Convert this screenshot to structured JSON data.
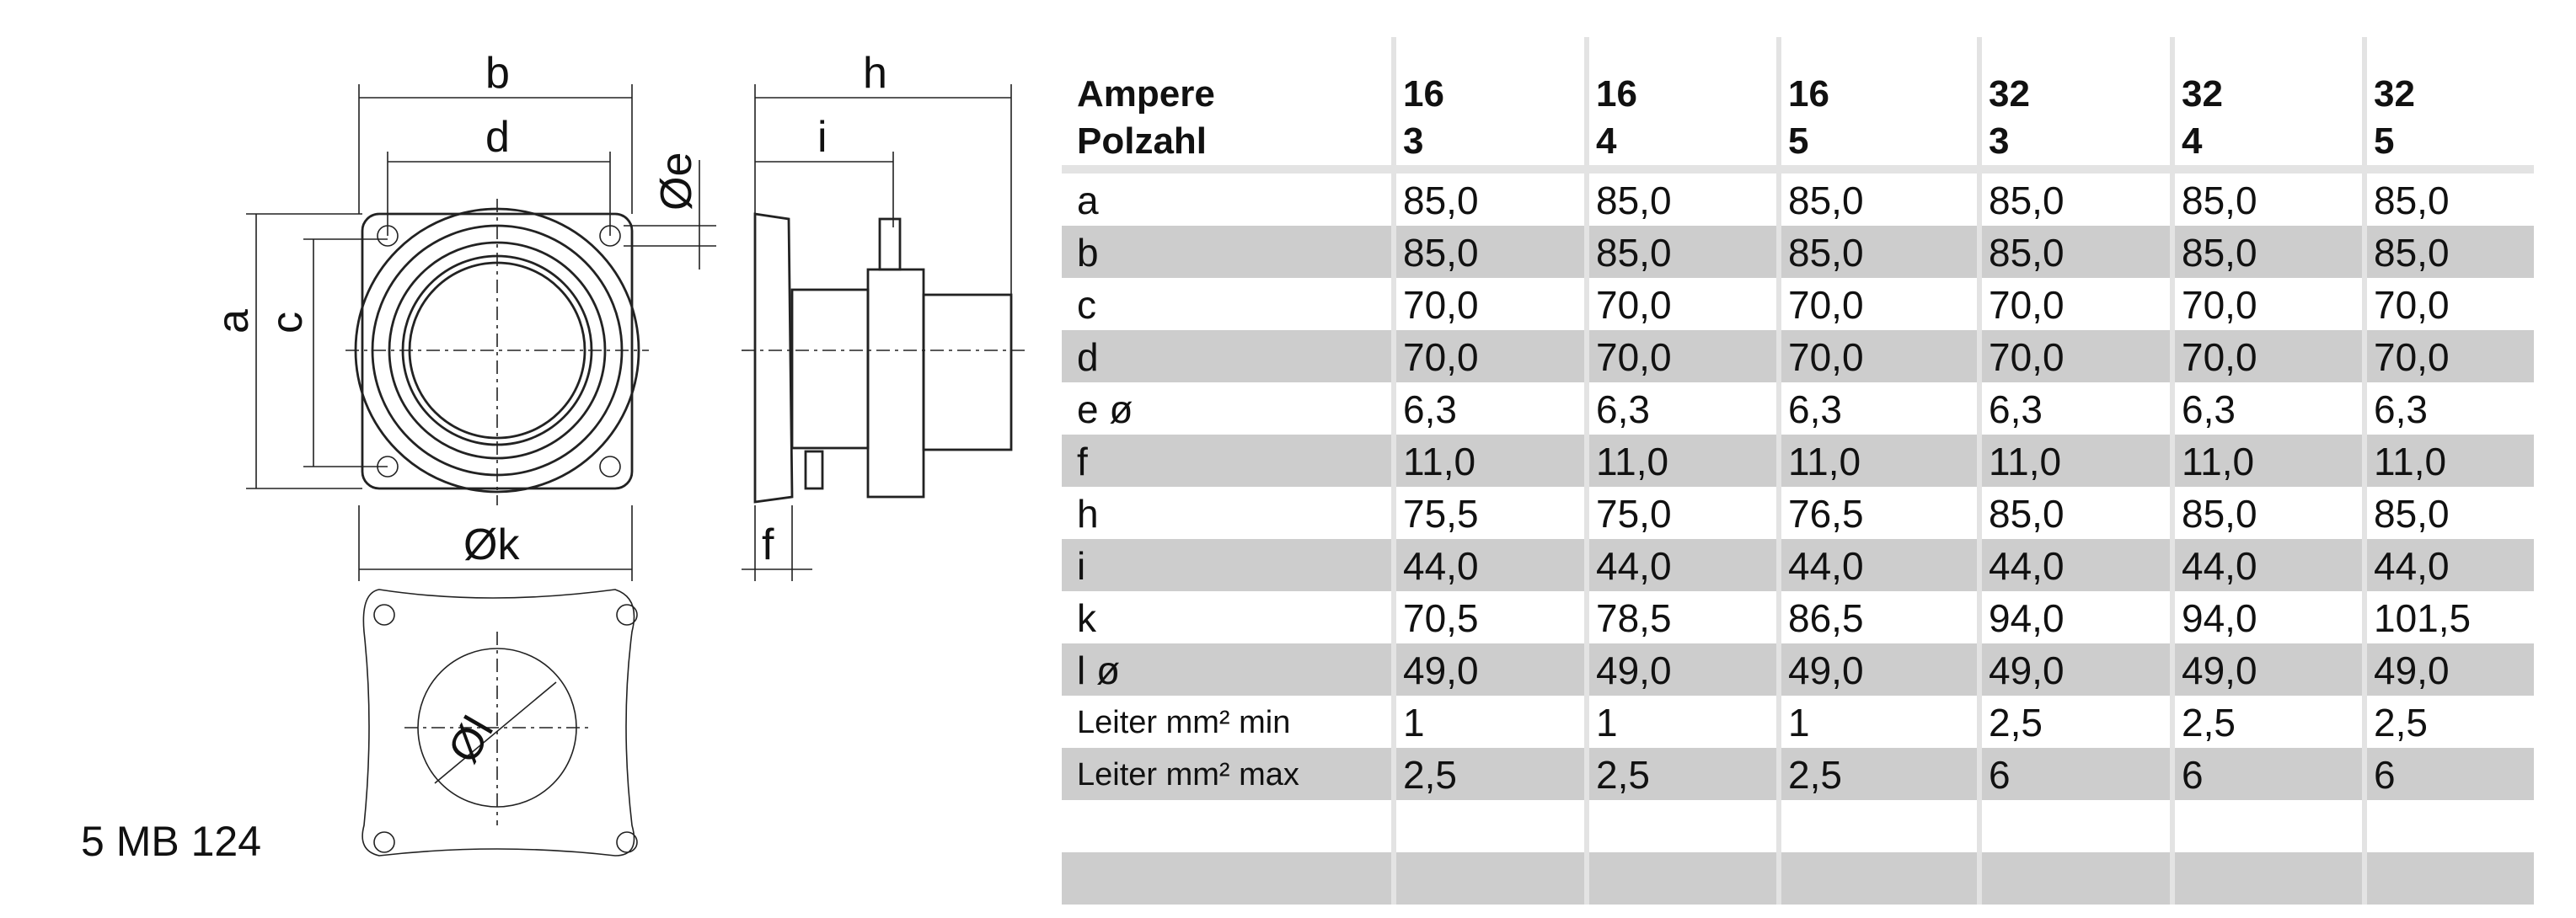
{
  "drawing": {
    "labels": {
      "b": "b",
      "d": "d",
      "a": "a",
      "c": "c",
      "e": "Øe",
      "k": "Øk",
      "h": "h",
      "i": "i",
      "f": "f",
      "l": "Øl"
    },
    "model": "5 MB 124"
  },
  "table": {
    "header": {
      "row_labels": [
        "Ampere",
        "Polzahl"
      ],
      "columns": [
        {
          "ampere": "16",
          "polzahl": "3"
        },
        {
          "ampere": "16",
          "polzahl": "4"
        },
        {
          "ampere": "16",
          "polzahl": "5"
        },
        {
          "ampere": "32",
          "polzahl": "3"
        },
        {
          "ampere": "32",
          "polzahl": "4"
        },
        {
          "ampere": "32",
          "polzahl": "5"
        }
      ]
    },
    "rows": [
      {
        "label": "a",
        "values": [
          "85,0",
          "85,0",
          "85,0",
          "85,0",
          "85,0",
          "85,0"
        ]
      },
      {
        "label": "b",
        "values": [
          "85,0",
          "85,0",
          "85,0",
          "85,0",
          "85,0",
          "85,0"
        ]
      },
      {
        "label": "c",
        "values": [
          "70,0",
          "70,0",
          "70,0",
          "70,0",
          "70,0",
          "70,0"
        ]
      },
      {
        "label": "d",
        "values": [
          "70,0",
          "70,0",
          "70,0",
          "70,0",
          "70,0",
          "70,0"
        ]
      },
      {
        "label": "e ø",
        "values": [
          "6,3",
          "6,3",
          "6,3",
          "6,3",
          "6,3",
          "6,3"
        ]
      },
      {
        "label": "f",
        "values": [
          "11,0",
          "11,0",
          "11,0",
          "11,0",
          "11,0",
          "11,0"
        ]
      },
      {
        "label": "h",
        "values": [
          "75,5",
          "75,0",
          "76,5",
          "85,0",
          "85,0",
          "85,0"
        ]
      },
      {
        "label": "i",
        "values": [
          "44,0",
          "44,0",
          "44,0",
          "44,0",
          "44,0",
          "44,0"
        ]
      },
      {
        "label": "k",
        "values": [
          "70,5",
          "78,5",
          "86,5",
          "94,0",
          "94,0",
          "101,5"
        ]
      },
      {
        "label": "l ø",
        "values": [
          "49,0",
          "49,0",
          "49,0",
          "49,0",
          "49,0",
          "49,0"
        ]
      },
      {
        "label": "Leiter mm² min",
        "values": [
          "1",
          "1",
          "1",
          "2,5",
          "2,5",
          "2,5"
        ]
      },
      {
        "label": "Leiter mm² max",
        "values": [
          "2,5",
          "2,5",
          "2,5",
          "6",
          "6",
          "6"
        ]
      },
      {
        "label": "",
        "values": [
          "",
          "",
          "",
          "",
          "",
          ""
        ]
      },
      {
        "label": "",
        "values": [
          "",
          "",
          "",
          "",
          "",
          ""
        ]
      }
    ]
  }
}
